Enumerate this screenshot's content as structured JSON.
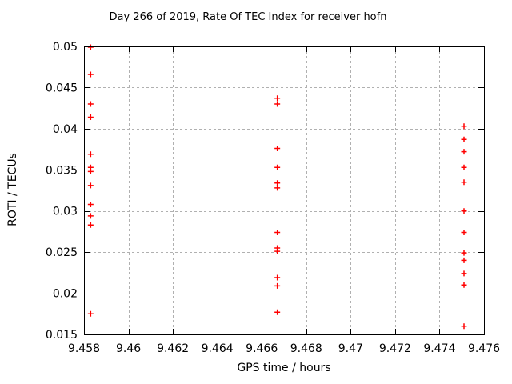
{
  "chart_data": {
    "type": "scatter",
    "title": "Day 266 of 2019, Rate Of TEC Index for receiver hofn",
    "xlabel": "GPS time / hours",
    "ylabel": "ROTI / TECUs",
    "xlim": [
      9.458,
      9.476
    ],
    "ylim": [
      0.015,
      0.05
    ],
    "xtick_values": [
      9.458,
      9.46,
      9.462,
      9.464,
      9.466,
      9.468,
      9.47,
      9.472,
      9.474,
      9.476
    ],
    "xtick_labels": [
      "9.458",
      "9.46",
      "9.462",
      "9.464",
      "9.466",
      "9.468",
      "9.47",
      "9.472",
      "9.474",
      "9.476"
    ],
    "ytick_values": [
      0.015,
      0.02,
      0.025,
      0.03,
      0.035,
      0.04,
      0.045,
      0.05
    ],
    "ytick_labels": [
      "0.015",
      "0.02",
      "0.025",
      "0.03",
      "0.035",
      "0.04",
      "0.045",
      "0.05"
    ],
    "grid": true,
    "legend": "none",
    "marker_shape": "plus",
    "colors": {
      "marker": "#ff0000",
      "grid": "#b0b0b0",
      "axis": "#000000",
      "background": "#ffffff",
      "text": "#000000"
    },
    "points": [
      [
        9.4583,
        0.0499
      ],
      [
        9.4583,
        0.0466
      ],
      [
        9.4583,
        0.043
      ],
      [
        9.4583,
        0.0414
      ],
      [
        9.4583,
        0.0369
      ],
      [
        9.4583,
        0.0353
      ],
      [
        9.4583,
        0.0348
      ],
      [
        9.4583,
        0.0331
      ],
      [
        9.4583,
        0.0308
      ],
      [
        9.4583,
        0.0294
      ],
      [
        9.4583,
        0.0283
      ],
      [
        9.4583,
        0.0175
      ],
      [
        9.4667,
        0.0437
      ],
      [
        9.4667,
        0.043
      ],
      [
        9.4667,
        0.0376
      ],
      [
        9.4667,
        0.0353
      ],
      [
        9.4667,
        0.0334
      ],
      [
        9.4667,
        0.0328
      ],
      [
        9.4667,
        0.0274
      ],
      [
        9.4667,
        0.0255
      ],
      [
        9.4667,
        0.0251
      ],
      [
        9.4667,
        0.0219
      ],
      [
        9.4667,
        0.0209
      ],
      [
        9.4667,
        0.0177
      ],
      [
        9.4751,
        0.0403
      ],
      [
        9.4751,
        0.0387
      ],
      [
        9.4751,
        0.0372
      ],
      [
        9.4751,
        0.0353
      ],
      [
        9.4751,
        0.0335
      ],
      [
        9.4751,
        0.03
      ],
      [
        9.4751,
        0.0274
      ],
      [
        9.4751,
        0.0249
      ],
      [
        9.4751,
        0.024
      ],
      [
        9.4751,
        0.0224
      ],
      [
        9.4751,
        0.021
      ],
      [
        9.4751,
        0.016
      ]
    ]
  }
}
